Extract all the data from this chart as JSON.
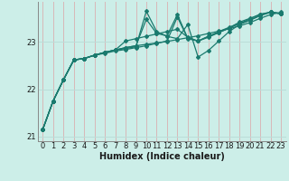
{
  "xlabel": "Humidex (Indice chaleur)",
  "ylabel": "",
  "bg_color": "#cceee8",
  "grid_color": "#bbddd8",
  "line_color": "#1a7a6e",
  "x_min": -0.5,
  "x_max": 23.5,
  "y_min": 20.9,
  "y_max": 23.85,
  "yticks": [
    21,
    22,
    23
  ],
  "xticks": [
    0,
    1,
    2,
    3,
    4,
    5,
    6,
    7,
    8,
    9,
    10,
    11,
    12,
    13,
    14,
    15,
    16,
    17,
    18,
    19,
    20,
    21,
    22,
    23
  ],
  "series": [
    [
      21.15,
      21.75,
      22.2,
      22.62,
      22.65,
      22.72,
      22.78,
      22.83,
      22.88,
      22.92,
      22.95,
      22.98,
      23.01,
      23.05,
      23.09,
      23.13,
      23.18,
      23.23,
      23.28,
      23.34,
      23.41,
      23.5,
      23.58,
      23.63
    ],
    [
      21.15,
      21.75,
      22.2,
      22.62,
      22.65,
      22.72,
      22.78,
      22.83,
      22.88,
      22.92,
      23.48,
      23.18,
      23.13,
      23.58,
      23.08,
      23.02,
      23.1,
      23.2,
      23.3,
      23.42,
      23.5,
      23.58,
      23.63,
      23.6
    ],
    [
      21.15,
      21.75,
      22.2,
      22.62,
      22.65,
      22.72,
      22.78,
      22.83,
      23.02,
      23.07,
      23.12,
      23.17,
      23.22,
      23.27,
      23.1,
      23.02,
      23.12,
      23.22,
      23.31,
      23.39,
      23.46,
      23.56,
      23.63,
      23.6
    ],
    [
      21.15,
      21.75,
      22.2,
      22.62,
      22.65,
      22.72,
      22.78,
      22.83,
      22.86,
      22.9,
      23.65,
      23.22,
      23.12,
      23.07,
      23.37,
      22.68,
      22.82,
      23.02,
      23.22,
      23.37,
      23.46,
      23.56,
      23.63,
      23.6
    ],
    [
      21.15,
      21.75,
      22.2,
      22.62,
      22.65,
      22.72,
      22.76,
      22.81,
      22.84,
      22.88,
      22.92,
      22.97,
      23.02,
      23.53,
      23.07,
      23.02,
      23.12,
      23.2,
      23.29,
      23.39,
      23.49,
      23.59,
      23.63,
      23.6
    ]
  ],
  "marker": "D",
  "marker_size": 2.0,
  "line_width": 0.9,
  "tick_fontsize": 6.0,
  "xlabel_fontsize": 7.0
}
